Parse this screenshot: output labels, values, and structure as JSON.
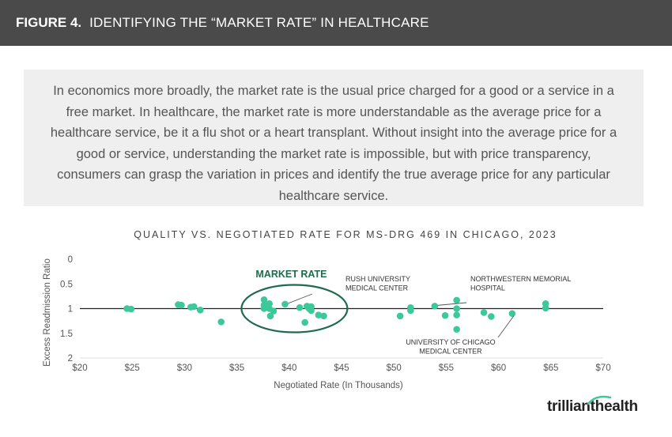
{
  "header": {
    "figure_label": "FIGURE 4.",
    "title": "IDENTIFYING THE “MARKET RATE” IN HEALTHCARE"
  },
  "intro_text": "In economics more broadly, the market rate is the usual price charged for a good or a service in a free market. In healthcare, the market rate is more understandable as the average price for a healthcare service, be it a flu shot or a heart transplant. Without insight into the average price for a good or service, understanding the market rate is impossible, but with price transparency, consumers can grasp the variation in prices and identify the true average price for any particular healthcare service.",
  "logo": {
    "part1": "trilliant",
    "part2": "health"
  },
  "colors": {
    "point": "#3dc89a",
    "ring": "#1f6b4e",
    "header_bg": "#4a4a4a"
  },
  "chart_data": {
    "type": "scatter",
    "title": "QUALITY VS. NEGOTIATED RATE FOR MS-DRG 469 IN CHICAGO, 2023",
    "xlabel": "Negotiated Rate (In Thousands)",
    "ylabel": "Excess Readmission Ratio",
    "xlim": [
      20,
      70
    ],
    "ylim": [
      0,
      2
    ],
    "y_inverted": true,
    "x_ticks": [
      "$20",
      "$25",
      "$30",
      "$35",
      "$40",
      "$45",
      "$50",
      "$55",
      "$60",
      "$65",
      "$70"
    ],
    "y_ticks": [
      "0",
      "0.5",
      "1",
      "1.5",
      "2"
    ],
    "reference_line": 1,
    "highlight_label": "MARKET RATE",
    "points": [
      {
        "x": 24.5,
        "y": 1.0
      },
      {
        "x": 24.9,
        "y": 1.01
      },
      {
        "x": 29.4,
        "y": 0.92
      },
      {
        "x": 29.7,
        "y": 0.93
      },
      {
        "x": 30.6,
        "y": 0.97
      },
      {
        "x": 30.9,
        "y": 0.96
      },
      {
        "x": 31.5,
        "y": 1.03
      },
      {
        "x": 33.5,
        "y": 1.27
      },
      {
        "x": 37.6,
        "y": 0.82
      },
      {
        "x": 37.6,
        "y": 0.93
      },
      {
        "x": 37.6,
        "y": 1.0
      },
      {
        "x": 38.1,
        "y": 0.9
      },
      {
        "x": 38.1,
        "y": 1.0
      },
      {
        "x": 38.2,
        "y": 1.15
      },
      {
        "x": 38.5,
        "y": 1.05
      },
      {
        "x": 39.6,
        "y": 0.91
      },
      {
        "x": 41.0,
        "y": 0.98
      },
      {
        "x": 41.5,
        "y": 1.28
      },
      {
        "x": 41.7,
        "y": 0.95
      },
      {
        "x": 41.9,
        "y": 1.0
      },
      {
        "x": 42.1,
        "y": 0.96
      },
      {
        "x": 42.1,
        "y": 1.04
      },
      {
        "x": 42.8,
        "y": 1.13
      },
      {
        "x": 43.3,
        "y": 1.15
      },
      {
        "x": 50.6,
        "y": 1.15
      },
      {
        "x": 51.6,
        "y": 0.98
      },
      {
        "x": 51.6,
        "y": 1.04
      },
      {
        "x": 53.9,
        "y": 0.95
      },
      {
        "x": 54.9,
        "y": 1.14
      },
      {
        "x": 56.0,
        "y": 0.83
      },
      {
        "x": 56.0,
        "y": 1.0
      },
      {
        "x": 56.0,
        "y": 1.13
      },
      {
        "x": 56.0,
        "y": 1.42
      },
      {
        "x": 58.6,
        "y": 1.08
      },
      {
        "x": 59.3,
        "y": 1.16
      },
      {
        "x": 61.3,
        "y": 1.1
      },
      {
        "x": 64.5,
        "y": 0.9
      },
      {
        "x": 64.5,
        "y": 0.99
      }
    ],
    "annotations": [
      {
        "lines": [
          "RUSH UNIVERSITY",
          "MEDICAL CENTER"
        ],
        "x": 39.6,
        "y": 0.91
      },
      {
        "lines": [
          "NORTHWESTERN MEMORIAL",
          "HOSPITAL"
        ],
        "x": 53.9,
        "y": 0.95
      },
      {
        "lines": [
          "UNIVERSITY OF CHICAGO",
          "MEDICAL CENTER"
        ],
        "x": 61.3,
        "y": 1.1
      }
    ]
  }
}
